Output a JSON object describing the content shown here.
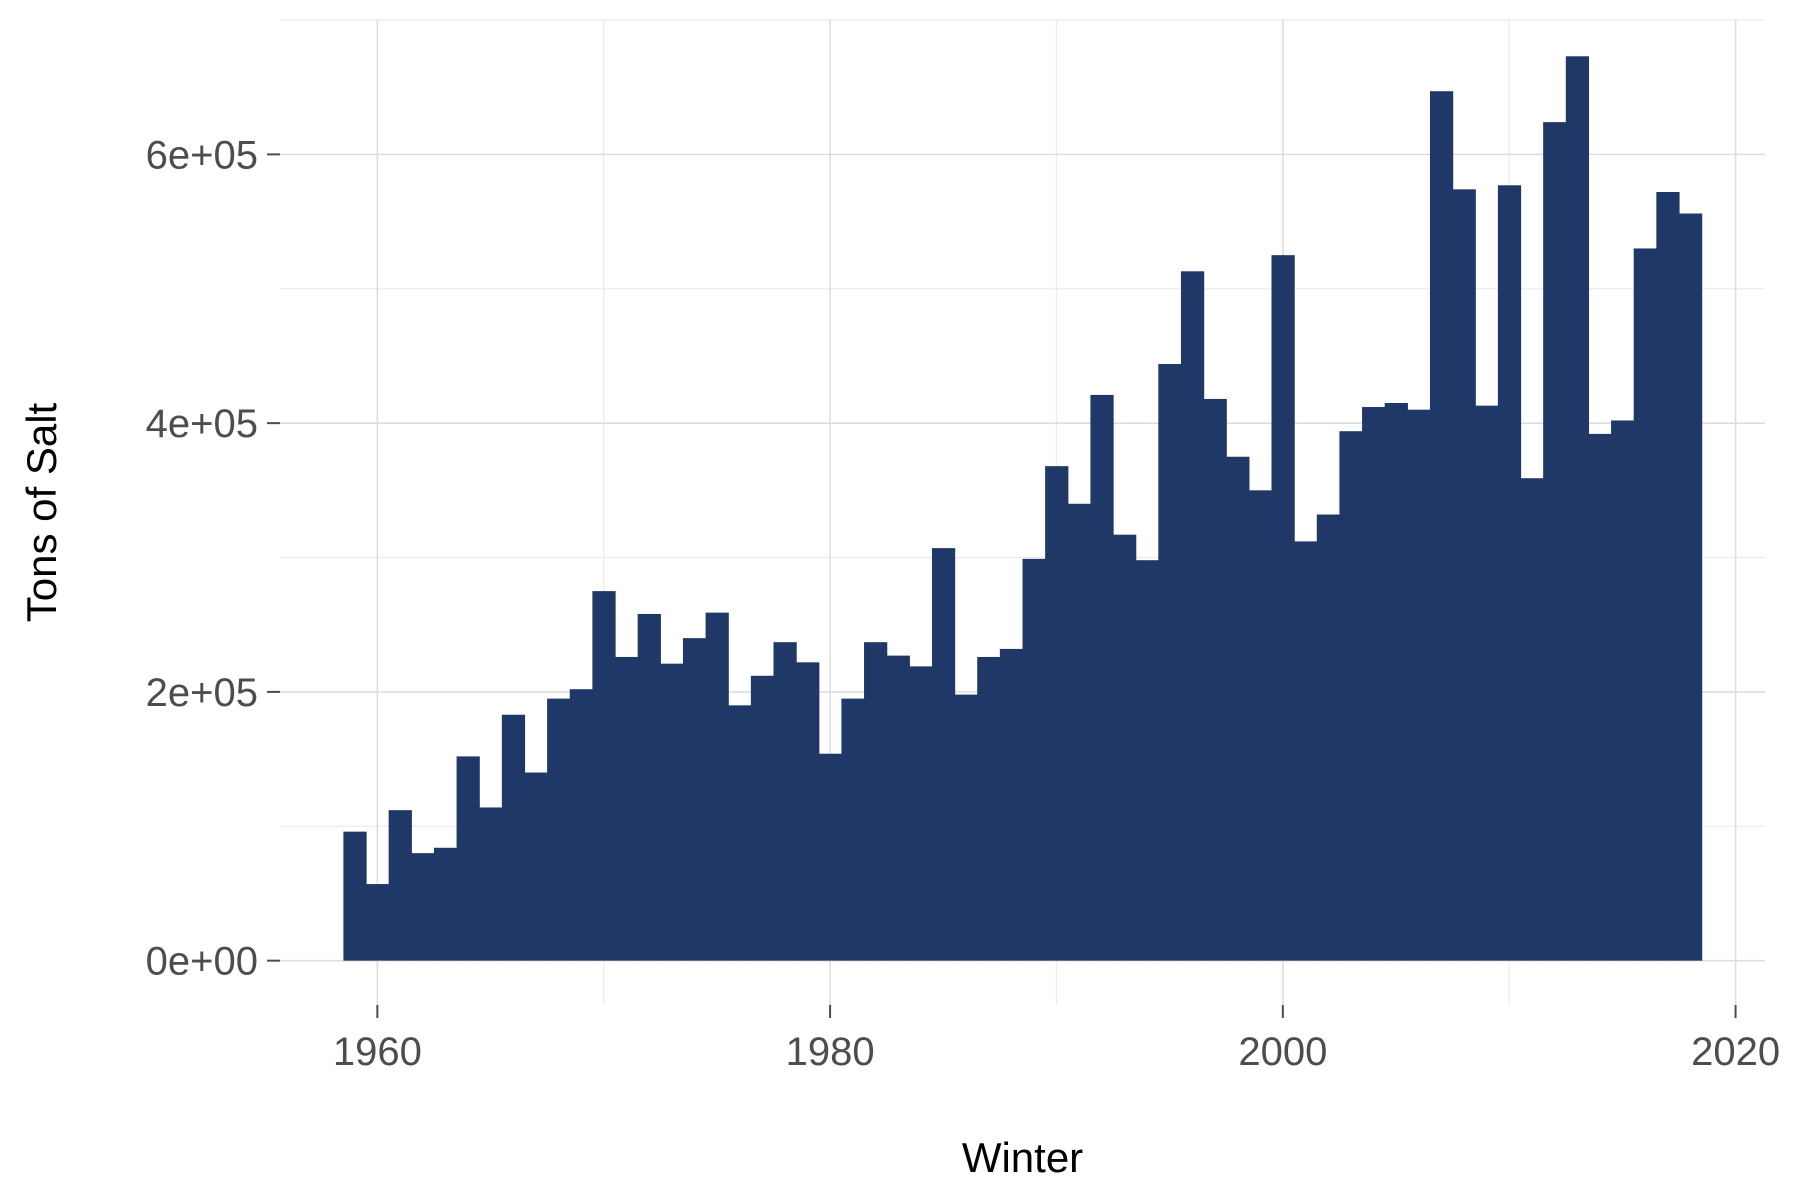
{
  "chart_data": {
    "type": "bar",
    "title": "",
    "xlabel": "Winter",
    "ylabel": "Tons of Salt",
    "x": [
      1959,
      1960,
      1961,
      1962,
      1963,
      1964,
      1965,
      1966,
      1967,
      1968,
      1969,
      1970,
      1971,
      1972,
      1973,
      1974,
      1975,
      1976,
      1977,
      1978,
      1979,
      1980,
      1981,
      1982,
      1983,
      1984,
      1985,
      1986,
      1987,
      1988,
      1989,
      1990,
      1991,
      1992,
      1993,
      1994,
      1995,
      1996,
      1997,
      1998,
      1999,
      2000,
      2001,
      2002,
      2003,
      2004,
      2005,
      2006,
      2007,
      2008,
      2009,
      2010,
      2011,
      2012,
      2013,
      2014,
      2015,
      2016,
      2017,
      2018
    ],
    "values": [
      96000,
      57000,
      112000,
      80000,
      84000,
      152000,
      114000,
      183000,
      140000,
      195000,
      202000,
      275000,
      226000,
      258000,
      221000,
      240000,
      259000,
      190000,
      212000,
      237000,
      222000,
      154000,
      195000,
      237000,
      227000,
      219000,
      307000,
      198000,
      226000,
      232000,
      299000,
      368000,
      340000,
      421000,
      317000,
      298000,
      444000,
      513000,
      418000,
      375000,
      350000,
      525000,
      312000,
      332000,
      394000,
      412000,
      415000,
      410000,
      647000,
      574000,
      413000,
      577000,
      359000,
      624000,
      673000,
      392000,
      402000,
      530000,
      572000,
      556000
    ],
    "x_ticks": [
      "1960",
      "1980",
      "2000",
      "2020"
    ],
    "x_tick_values": [
      1960,
      1980,
      2000,
      2020
    ],
    "y_ticks": [
      "0e+00",
      "2e+05",
      "4e+05",
      "6e+05"
    ],
    "y_tick_values": [
      0,
      200000,
      400000,
      600000
    ],
    "xlim": [
      1955.7,
      2021.3
    ],
    "ylim": [
      -33000,
      700000
    ],
    "grid": true,
    "legend": "none",
    "bar_color": "#1f3868"
  }
}
